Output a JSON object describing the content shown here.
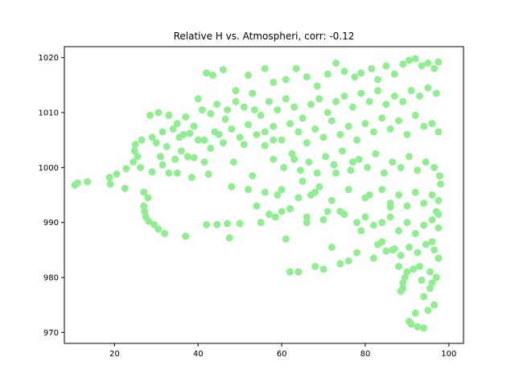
{
  "chart_data": {
    "type": "scatter",
    "title": "Relative H vs. Atmospheri, corr: -0.12",
    "xlabel": "",
    "ylabel": "",
    "xlim": [
      8,
      103.5
    ],
    "ylim": [
      968,
      1022
    ],
    "x_ticks": [
      20,
      40,
      60,
      80,
      100
    ],
    "y_ticks": [
      970,
      980,
      990,
      1000,
      1010,
      1020
    ],
    "grid": false,
    "marker_color": "#90ee90",
    "points": [
      [
        10.5,
        996.8
      ],
      [
        11.2,
        997.2
      ],
      [
        13.5,
        997.4
      ],
      [
        18.8,
        998.2
      ],
      [
        19.0,
        997.0
      ],
      [
        20.5,
        998.8
      ],
      [
        22.5,
        996.2
      ],
      [
        22.8,
        999.8
      ],
      [
        24.5,
        1001.0
      ],
      [
        24.8,
        1003.0
      ],
      [
        25.0,
        1004.2
      ],
      [
        25.5,
        1002.0
      ],
      [
        26.2,
        1000.0
      ],
      [
        27.0,
        995.5
      ],
      [
        27.0,
        993.0
      ],
      [
        27.2,
        992.0
      ],
      [
        27.5,
        991.0
      ],
      [
        28.0,
        994.5
      ],
      [
        28.2,
        990.2
      ],
      [
        29.0,
        999.2
      ],
      [
        29.5,
        989.6
      ],
      [
        30.0,
        1004.5
      ],
      [
        30.5,
        988.8
      ],
      [
        31.0,
        1002.0
      ],
      [
        31.5,
        1000.5
      ],
      [
        32.0,
        988.0
      ],
      [
        32.5,
        1003.8
      ],
      [
        33.0,
        999.0
      ],
      [
        34.5,
        1001.5
      ],
      [
        35.0,
        999.0
      ],
      [
        35.5,
        1005.5
      ],
      [
        36.0,
        1003.0
      ],
      [
        37.0,
        987.5
      ],
      [
        37.5,
        1002.0
      ],
      [
        38.0,
        1006.2
      ],
      [
        38.5,
        998.2
      ],
      [
        39.0,
        1001.8
      ],
      [
        40.0,
        1005.0
      ],
      [
        41.5,
        1001.0
      ],
      [
        42.0,
        989.6
      ],
      [
        42.5,
        998.8
      ],
      [
        43.0,
        1003.5
      ],
      [
        44.5,
        989.6
      ],
      [
        45.0,
        1006.0
      ],
      [
        46.5,
        1008.8
      ],
      [
        47.0,
        989.8
      ],
      [
        47.5,
        987.2
      ],
      [
        48.0,
        996.5
      ],
      [
        48.5,
        1001.0
      ],
      [
        50.0,
        989.8
      ],
      [
        51.0,
        1004.2
      ],
      [
        52.0,
        996.0
      ],
      [
        53.0,
        998.5
      ],
      [
        54.0,
        993.0
      ],
      [
        55.0,
        990.0
      ],
      [
        56.0,
        1006.5
      ],
      [
        57.0,
        991.5
      ],
      [
        58.0,
        1005.0
      ],
      [
        59.0,
        995.0
      ],
      [
        60.0,
        992.0
      ],
      [
        61.0,
        987.0
      ],
      [
        62.0,
        981.0
      ],
      [
        63.0,
        1001.5
      ],
      [
        64.0,
        981.0
      ],
      [
        65.0,
        997.5
      ],
      [
        66.0,
        990.0
      ],
      [
        67.0,
        995.0
      ],
      [
        68.0,
        982.0
      ],
      [
        69.0,
        996.5
      ],
      [
        70.0,
        981.5
      ],
      [
        71.0,
        992.0
      ],
      [
        72.0,
        985.5
      ],
      [
        73.0,
        999.0
      ],
      [
        74.0,
        982.5
      ],
      [
        75.0,
        991.5
      ],
      [
        76.0,
        983.0
      ],
      [
        77.0,
        1001.0
      ],
      [
        78.0,
        984.5
      ],
      [
        79.0,
        988.5
      ],
      [
        80.0,
        991.0
      ],
      [
        81.0,
        995.0
      ],
      [
        82.0,
        983.5
      ],
      [
        83.0,
        986.0
      ],
      [
        84.0,
        990.0
      ],
      [
        85.0,
        984.8
      ],
      [
        86.0,
        992.8
      ],
      [
        87.0,
        985.2
      ],
      [
        88.0,
        982.0
      ],
      [
        88.5,
        977.5
      ],
      [
        89.0,
        979.0
      ],
      [
        90.0,
        981.0
      ],
      [
        90.5,
        972.0
      ],
      [
        91.0,
        971.5
      ],
      [
        92.0,
        973.5
      ],
      [
        92.5,
        971.0
      ],
      [
        93.0,
        982.0
      ],
      [
        94.0,
        970.8
      ],
      [
        95.0,
        974.0
      ],
      [
        95.5,
        978.0
      ],
      [
        96.0,
        986.5
      ],
      [
        96.5,
        975.0
      ],
      [
        97.0,
        992.0
      ],
      [
        97.5,
        989.0
      ],
      [
        98.0,
        997.0
      ],
      [
        42.0,
        1017.2
      ],
      [
        43.5,
        1016.8
      ],
      [
        46.0,
        1017.8
      ],
      [
        49.0,
        1014.0
      ],
      [
        52.0,
        1016.8
      ],
      [
        53.0,
        1013.5
      ],
      [
        56.0,
        1018.0
      ],
      [
        58.0,
        1015.5
      ],
      [
        61.0,
        1016.0
      ],
      [
        63.5,
        1018.0
      ],
      [
        66.0,
        1016.5
      ],
      [
        68.5,
        1014.8
      ],
      [
        71.0,
        1017.0
      ],
      [
        73.0,
        1019.0
      ],
      [
        75.0,
        1017.5
      ],
      [
        77.5,
        1016.5
      ],
      [
        79.0,
        1017.2
      ],
      [
        81.5,
        1018.0
      ],
      [
        83.0,
        1016.0
      ],
      [
        85.0,
        1018.5
      ],
      [
        87.0,
        1017.0
      ],
      [
        89.0,
        1018.8
      ],
      [
        90.5,
        1019.5
      ],
      [
        92.0,
        1019.8
      ],
      [
        93.5,
        1018.5
      ],
      [
        95.0,
        1019.0
      ],
      [
        96.5,
        1018.0
      ],
      [
        97.5,
        1019.2
      ],
      [
        28.5,
        1009.5
      ],
      [
        30.5,
        1010.0
      ],
      [
        33.0,
        1009.5
      ],
      [
        35.0,
        1008.0
      ],
      [
        37.0,
        1009.2
      ],
      [
        40.0,
        1012.5
      ],
      [
        41.0,
        1010.5
      ],
      [
        43.0,
        1009.8
      ],
      [
        44.5,
        1011.5
      ],
      [
        47.0,
        1010.5
      ],
      [
        49.0,
        1012.0
      ],
      [
        51.0,
        1011.0
      ],
      [
        53.5,
        1010.5
      ],
      [
        55.0,
        1009.5
      ],
      [
        57.0,
        1012.0
      ],
      [
        59.0,
        1010.5
      ],
      [
        61.0,
        1012.5
      ],
      [
        63.0,
        1011.0
      ],
      [
        65.0,
        1009.0
      ],
      [
        67.0,
        1011.5
      ],
      [
        69.0,
        1012.5
      ],
      [
        71.0,
        1010.0
      ],
      [
        73.0,
        1012.0
      ],
      [
        75.0,
        1013.0
      ],
      [
        77.0,
        1011.0
      ],
      [
        79.0,
        1013.5
      ],
      [
        81.0,
        1012.0
      ],
      [
        83.0,
        1014.0
      ],
      [
        85.0,
        1011.5
      ],
      [
        87.0,
        1013.0
      ],
      [
        89.0,
        1012.0
      ],
      [
        91.0,
        1014.0
      ],
      [
        93.0,
        1013.0
      ],
      [
        95.0,
        1014.5
      ],
      [
        97.0,
        1013.5
      ],
      [
        26.5,
        1005.0
      ],
      [
        29.0,
        1005.5
      ],
      [
        31.5,
        1006.5
      ],
      [
        34.0,
        1007.0
      ],
      [
        36.5,
        1006.0
      ],
      [
        39.0,
        1007.5
      ],
      [
        41.5,
        1005.0
      ],
      [
        44.0,
        1006.5
      ],
      [
        46.0,
        1004.5
      ],
      [
        48.0,
        1007.0
      ],
      [
        50.0,
        1005.5
      ],
      [
        52.0,
        1007.8
      ],
      [
        54.0,
        1006.0
      ],
      [
        56.0,
        1004.0
      ],
      [
        58.0,
        1007.5
      ],
      [
        60.0,
        1005.0
      ],
      [
        62.0,
        1008.0
      ],
      [
        64.0,
        1006.5
      ],
      [
        66.0,
        1004.5
      ],
      [
        68.0,
        1007.0
      ],
      [
        70.0,
        1005.5
      ],
      [
        72.0,
        1008.5
      ],
      [
        74.0,
        1006.0
      ],
      [
        76.0,
        1007.5
      ],
      [
        78.0,
        1005.0
      ],
      [
        80.0,
        1008.0
      ],
      [
        82.0,
        1006.5
      ],
      [
        84.0,
        1009.0
      ],
      [
        86.0,
        1007.0
      ],
      [
        88.0,
        1008.5
      ],
      [
        90.0,
        1006.0
      ],
      [
        92.0,
        1009.5
      ],
      [
        94.0,
        1007.5
      ],
      [
        96.0,
        1008.0
      ],
      [
        97.5,
        1006.5
      ],
      [
        58.0,
        1001.5
      ],
      [
        60.5,
        1000.0
      ],
      [
        62.5,
        1002.5
      ],
      [
        64.5,
        999.5
      ],
      [
        66.5,
        1001.0
      ],
      [
        68.5,
        999.0
      ],
      [
        70.5,
        1002.0
      ],
      [
        72.5,
        1000.5
      ],
      [
        74.5,
        1003.0
      ],
      [
        76.5,
        999.5
      ],
      [
        78.5,
        1001.5
      ],
      [
        80.5,
        1000.0
      ],
      [
        82.5,
        1002.5
      ],
      [
        84.5,
        999.0
      ],
      [
        86.5,
        1001.0
      ],
      [
        88.5,
        1000.0
      ],
      [
        90.5,
        1002.0
      ],
      [
        92.5,
        999.5
      ],
      [
        94.5,
        1001.0
      ],
      [
        96.5,
        1000.0
      ],
      [
        97.8,
        998.5
      ],
      [
        56.0,
        995.5
      ],
      [
        60.0,
        996.0
      ],
      [
        64.0,
        994.5
      ],
      [
        68.0,
        995.5
      ],
      [
        72.0,
        994.0
      ],
      [
        76.0,
        996.0
      ],
      [
        80.0,
        994.5
      ],
      [
        84.0,
        996.0
      ],
      [
        86.0,
        993.5
      ],
      [
        88.0,
        995.0
      ],
      [
        90.0,
        993.0
      ],
      [
        92.0,
        995.5
      ],
      [
        94.0,
        993.5
      ],
      [
        96.0,
        995.0
      ],
      [
        97.5,
        994.0
      ],
      [
        58.5,
        991.0
      ],
      [
        62.0,
        992.5
      ],
      [
        66.0,
        991.0
      ],
      [
        70.0,
        990.5
      ],
      [
        74.0,
        992.0
      ],
      [
        78.0,
        990.0
      ],
      [
        82.0,
        989.5
      ],
      [
        86.0,
        991.0
      ],
      [
        88.0,
        988.5
      ],
      [
        90.0,
        990.0
      ],
      [
        92.0,
        988.0
      ],
      [
        94.0,
        989.5
      ],
      [
        96.0,
        990.5
      ],
      [
        97.5,
        991.5
      ],
      [
        84.0,
        986.5
      ],
      [
        86.5,
        985.0
      ],
      [
        88.5,
        984.0
      ],
      [
        90.5,
        985.5
      ],
      [
        92.5,
        984.5
      ],
      [
        94.5,
        986.0
      ],
      [
        96.5,
        985.0
      ],
      [
        97.5,
        983.5
      ],
      [
        89.5,
        980.0
      ],
      [
        91.5,
        981.5
      ],
      [
        93.5,
        979.5
      ],
      [
        95.5,
        981.0
      ],
      [
        97.0,
        980.0
      ],
      [
        89.0,
        978.0
      ],
      [
        94.0,
        976.5
      ],
      [
        96.0,
        979.0
      ]
    ]
  }
}
